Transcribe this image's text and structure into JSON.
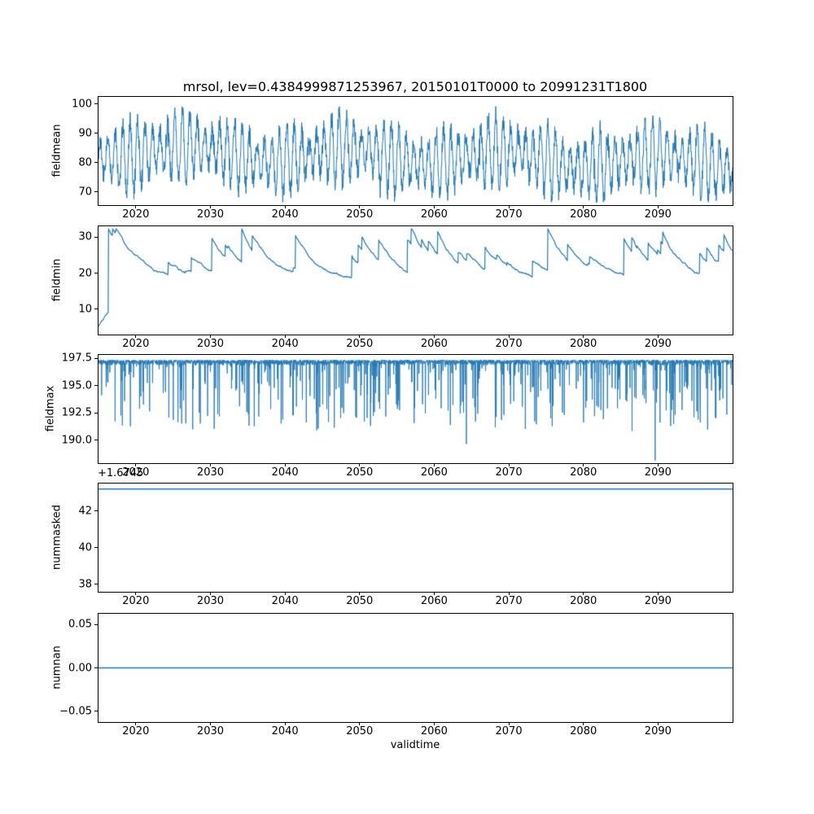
{
  "figure": {
    "title": "mrsol, lev=0.4384999871253967, 20150101T0000 to 20991231T1800",
    "xlabel": "validtime",
    "line_color": "#1f77b4",
    "background": "#ffffff",
    "spine_color": "#000000"
  },
  "chart_data": [
    {
      "type": "line",
      "ylabel": "fieldmean",
      "x_range": [
        2015,
        2100
      ],
      "xticks": [
        2020,
        2030,
        2040,
        2050,
        2060,
        2070,
        2080,
        2090
      ],
      "xtick_labels": [
        "2020",
        "2030",
        "2040",
        "2050",
        "2060",
        "2070",
        "2080",
        "2090"
      ],
      "ylim": [
        65.5,
        102.5
      ],
      "yticks": [
        70,
        80,
        90,
        100
      ],
      "ytick_labels": [
        "70",
        "80",
        "90",
        "100"
      ],
      "line_width": 1.0,
      "series": {
        "kind": "seasonal_noise",
        "n": 2400,
        "seed": 42,
        "base_start": 84,
        "base_end": 80,
        "seasonal_amp": 9,
        "amp_var": 3,
        "noise": 3.2,
        "min": 66.5,
        "max": 101
      }
    },
    {
      "type": "line",
      "ylabel": "fieldmin",
      "x_range": [
        2015,
        2100
      ],
      "xticks": [
        2020,
        2030,
        2040,
        2050,
        2060,
        2070,
        2080,
        2090
      ],
      "xtick_labels": [
        "2020",
        "2030",
        "2040",
        "2050",
        "2060",
        "2070",
        "2080",
        "2090"
      ],
      "ylim": [
        3,
        33
      ],
      "yticks": [
        10,
        20,
        30
      ],
      "ytick_labels": [
        "10",
        "20",
        "30"
      ],
      "line_width": 1.2,
      "series": {
        "kind": "jump_decay",
        "n": 1700,
        "seed": 7,
        "start": 4,
        "floor": 18,
        "tau_years": 3,
        "jump_prob": 0.015,
        "jump_min": 0.5,
        "jump_max": 6.5,
        "noise": 0.15,
        "max": 32.3,
        "big_jumps": [
          [
            2016.35,
            26
          ],
          [
            2030.2,
            9
          ],
          [
            2034.2,
            11
          ],
          [
            2041.4,
            9
          ],
          [
            2049.8,
            5
          ],
          [
            2056.4,
            9
          ],
          [
            2066.8,
            6
          ],
          [
            2075.2,
            13
          ],
          [
            2085.4,
            10
          ],
          [
            2096.5,
            4
          ]
        ]
      }
    },
    {
      "type": "line",
      "ylabel": "fieldmax",
      "x_range": [
        2015,
        2100
      ],
      "xticks": [
        2020,
        2030,
        2040,
        2050,
        2060,
        2070,
        2080,
        2090
      ],
      "xtick_labels": [
        "2020",
        "2030",
        "2040",
        "2050",
        "2060",
        "2070",
        "2080",
        "2090"
      ],
      "ylim": [
        187.9,
        197.8
      ],
      "yticks": [
        190.0,
        192.5,
        195.0,
        197.5
      ],
      "ytick_labels": [
        "190.0",
        "192.5",
        "195.0",
        "197.5"
      ],
      "line_width": 0.9,
      "series": {
        "kind": "spike_down",
        "n": 3400,
        "seed": 11,
        "baseline": 197.35,
        "jitter": 0.55,
        "spike_prob": 0.12,
        "spike_scale": 6.3,
        "min": 187.95,
        "forced_spikes": [
          [
            2018.2,
            6.0
          ],
          [
            2030.5,
            6.3
          ],
          [
            2046.6,
            6.2
          ],
          [
            2057.3,
            5.8
          ],
          [
            2064.3,
            7.7
          ],
          [
            2086.5,
            6.5
          ],
          [
            2089.6,
            9.2
          ]
        ]
      }
    },
    {
      "type": "line",
      "ylabel": "nummasked",
      "offset_text": "+1.6745",
      "x_range": [
        2015,
        2100
      ],
      "xticks": [
        2020,
        2030,
        2040,
        2050,
        2060,
        2070,
        2080,
        2090
      ],
      "xtick_labels": [
        "2020",
        "2030",
        "2040",
        "2050",
        "2060",
        "2070",
        "2080",
        "2090"
      ],
      "ylim": [
        37.6,
        43.5
      ],
      "yticks": [
        38,
        40,
        42
      ],
      "ytick_labels": [
        "38",
        "40",
        "42"
      ],
      "line_width": 1.5,
      "series": {
        "kind": "constant",
        "value": 43.2
      }
    },
    {
      "type": "line",
      "ylabel": "numnan",
      "x_range": [
        2015,
        2100
      ],
      "xticks": [
        2020,
        2030,
        2040,
        2050,
        2060,
        2070,
        2080,
        2090
      ],
      "xtick_labels": [
        "2020",
        "2030",
        "2040",
        "2050",
        "2060",
        "2070",
        "2080",
        "2090"
      ],
      "ylim": [
        -0.0625,
        0.0625
      ],
      "yticks": [
        -0.05,
        0.0,
        0.05
      ],
      "ytick_labels": [
        "−0.05",
        "0.00",
        "0.05"
      ],
      "line_width": 1.5,
      "series": {
        "kind": "constant",
        "value": 0.0
      }
    }
  ]
}
